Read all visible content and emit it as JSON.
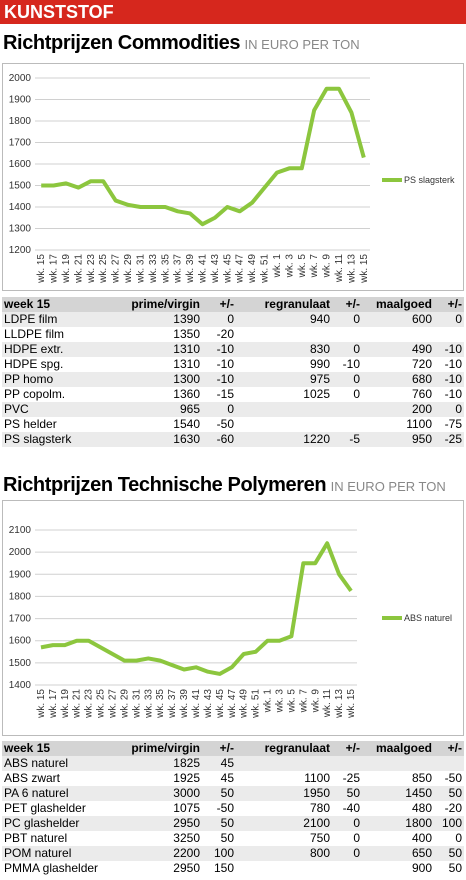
{
  "header": "KUNSTSTOF",
  "sections": [
    {
      "title": "Richtprijzen Commodities",
      "unit": "IN EURO PER TON"
    },
    {
      "title": "Richtprijzen Technische Polymeren",
      "unit": "IN EURO PER TON"
    }
  ],
  "chart_data": [
    {
      "type": "line",
      "categories": [
        "wk. 15",
        "wk. 17",
        "wk. 19",
        "wk. 21",
        "wk. 23",
        "wk. 25",
        "wk. 27",
        "wk. 29",
        "wk. 31",
        "wk. 33",
        "wk. 35",
        "wk. 37",
        "wk. 39",
        "wk. 41",
        "wk. 43",
        "wk. 45",
        "wk. 47",
        "wk. 49",
        "wk. 51",
        "wk. 1",
        "wk. 3",
        "wk. 5",
        "wk. 7",
        "wk. 9",
        "wk. 11",
        "wk. 13",
        "wk. 15"
      ],
      "series": [
        {
          "name": "PS slagsterk",
          "color": "#8cc63e",
          "values": [
            1500,
            1500,
            1510,
            1490,
            1520,
            1520,
            1430,
            1410,
            1400,
            1400,
            1400,
            1380,
            1370,
            1320,
            1350,
            1400,
            1380,
            1420,
            1490,
            1560,
            1580,
            1580,
            1850,
            1950,
            1950,
            1840,
            1630
          ]
        }
      ],
      "ylim": [
        1200,
        2000
      ],
      "yticks": [
        1200,
        1300,
        1400,
        1500,
        1600,
        1700,
        1800,
        1900,
        2000
      ],
      "grid": true,
      "legend": "right"
    },
    {
      "type": "line",
      "categories": [
        "wk. 15",
        "wk. 17",
        "wk. 19",
        "wk. 21",
        "wk. 23",
        "wk. 25",
        "wk. 27",
        "wk. 29",
        "wk. 31",
        "wk. 33",
        "wk. 35",
        "wk. 37",
        "wk. 39",
        "wk. 41",
        "wk. 43",
        "wk. 45",
        "wk. 47",
        "wk. 49",
        "wk. 51",
        "wk. 1",
        "wk. 3",
        "wk. 5",
        "wk. 7",
        "wk. 9",
        "wk. 11",
        "wk. 13",
        "wk. 15"
      ],
      "series": [
        {
          "name": "ABS naturel",
          "color": "#8cc63e",
          "values": [
            1570,
            1580,
            1580,
            1600,
            1600,
            1570,
            1540,
            1510,
            1510,
            1520,
            1510,
            1490,
            1470,
            1480,
            1460,
            1450,
            1480,
            1540,
            1550,
            1600,
            1600,
            1620,
            1950,
            1950,
            2040,
            1900,
            1825
          ]
        }
      ],
      "ylim": [
        1400,
        2100
      ],
      "yticks": [
        1400,
        1500,
        1600,
        1700,
        1800,
        1900,
        2000,
        2100
      ],
      "grid": true,
      "legend": "right"
    }
  ],
  "tables": [
    {
      "columns": [
        "week 15",
        "prime/virgin",
        "+/-",
        "regranulaat",
        "+/-",
        "maalgoed",
        "+/-"
      ],
      "rows": [
        [
          "LDPE film",
          1390,
          0,
          940,
          0,
          600,
          0
        ],
        [
          "LLDPE film",
          1350,
          -20,
          null,
          null,
          null,
          null
        ],
        [
          "HDPE extr.",
          1310,
          -10,
          830,
          0,
          490,
          -10
        ],
        [
          "HDPE spg.",
          1310,
          -10,
          990,
          -10,
          720,
          -10
        ],
        [
          "PP homo",
          1300,
          -10,
          975,
          0,
          680,
          -10
        ],
        [
          "PP copolm.",
          1360,
          -15,
          1025,
          0,
          760,
          -10
        ],
        [
          "PVC",
          965,
          0,
          null,
          null,
          200,
          0
        ],
        [
          "PS helder",
          1540,
          -50,
          null,
          null,
          1100,
          -75
        ],
        [
          "PS slagsterk",
          1630,
          -60,
          1220,
          -5,
          950,
          -25
        ]
      ]
    },
    {
      "columns": [
        "week 15",
        "prime/virgin",
        "+/-",
        "regranulaat",
        "+/-",
        "maalgoed",
        "+/-"
      ],
      "rows": [
        [
          "ABS naturel",
          1825,
          45,
          null,
          null,
          null,
          null
        ],
        [
          "ABS zwart",
          1925,
          45,
          1100,
          -25,
          850,
          -50
        ],
        [
          "PA 6 naturel",
          3000,
          50,
          1950,
          50,
          1450,
          50
        ],
        [
          "PET glashelder",
          1075,
          -50,
          780,
          -40,
          480,
          -20
        ],
        [
          "PC glashelder",
          2950,
          50,
          2100,
          0,
          1800,
          100
        ],
        [
          "PBT naturel",
          3250,
          50,
          750,
          0,
          400,
          0
        ],
        [
          "POM naturel",
          2200,
          100,
          800,
          0,
          650,
          50
        ],
        [
          "PMMA glashelder",
          2950,
          150,
          null,
          null,
          900,
          50
        ]
      ]
    }
  ]
}
